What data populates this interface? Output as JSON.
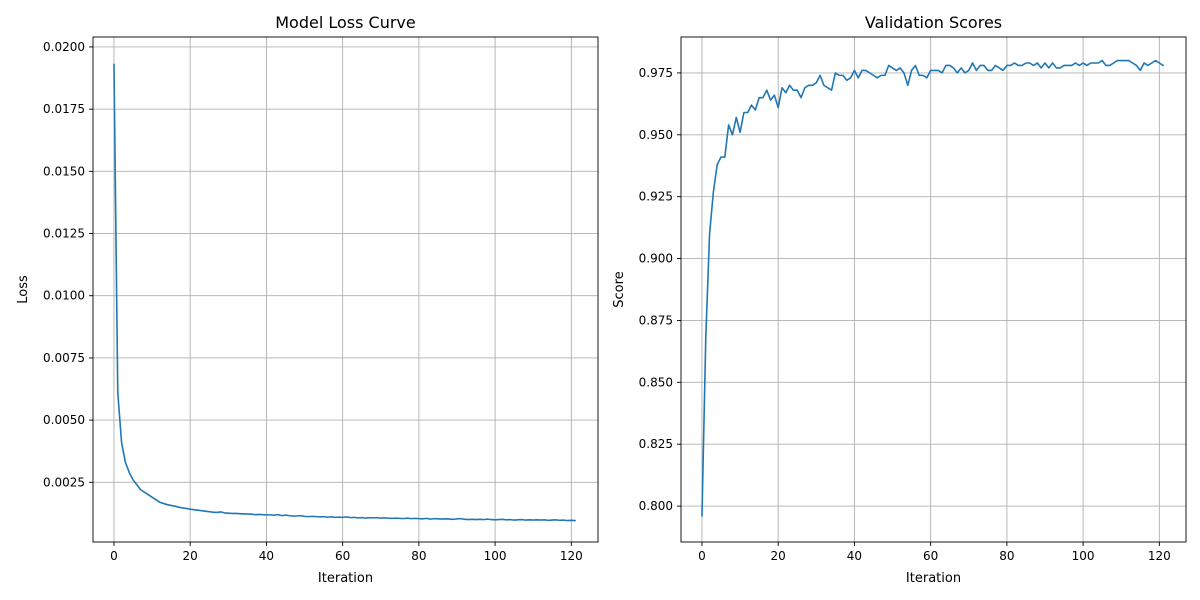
{
  "colors": {
    "series": "#1f77b4",
    "grid": "#b0b0b0"
  },
  "chart_data": [
    {
      "type": "line",
      "title": "Model Loss Curve",
      "xlabel": "Iteration",
      "ylabel": "Loss",
      "grid": true,
      "xlim": [
        -5.5,
        127
      ],
      "ylim": [
        0.0001,
        0.0204
      ],
      "xticks": [
        0,
        20,
        40,
        60,
        80,
        100,
        120
      ],
      "xtick_labels": [
        "0",
        "20",
        "40",
        "60",
        "80",
        "100",
        "120"
      ],
      "yticks": [
        0.0025,
        0.005,
        0.0075,
        0.01,
        0.0125,
        0.015,
        0.0175,
        0.02
      ],
      "ytick_labels": [
        "0.0025",
        "0.0050",
        "0.0075",
        "0.0100",
        "0.0125",
        "0.0150",
        "0.0175",
        "0.0200"
      ],
      "series": [
        {
          "x": [
            0,
            1,
            2,
            3,
            4,
            5,
            6,
            7,
            8,
            9,
            10,
            11,
            12,
            13,
            14,
            15,
            16,
            17,
            18,
            19,
            20,
            21,
            22,
            23,
            24,
            25,
            26,
            27,
            28,
            29,
            30,
            31,
            32,
            33,
            34,
            35,
            36,
            37,
            38,
            39,
            40,
            41,
            42,
            43,
            44,
            45,
            46,
            47,
            48,
            49,
            50,
            51,
            52,
            53,
            54,
            55,
            56,
            57,
            58,
            59,
            60,
            61,
            62,
            63,
            64,
            65,
            66,
            67,
            68,
            69,
            70,
            71,
            72,
            73,
            74,
            75,
            76,
            77,
            78,
            79,
            80,
            81,
            82,
            83,
            84,
            85,
            86,
            87,
            88,
            89,
            90,
            91,
            92,
            93,
            94,
            95,
            96,
            97,
            98,
            99,
            100,
            101,
            102,
            103,
            104,
            105,
            106,
            107,
            108,
            109,
            110,
            111,
            112,
            113,
            114,
            115,
            116,
            117,
            118,
            119,
            120,
            121
          ],
          "y": [
            0.0193,
            0.0061,
            0.0041,
            0.0033,
            0.0029,
            0.0026,
            0.0024,
            0.0022,
            0.0021,
            0.002,
            0.0019,
            0.0018,
            0.0017,
            0.00165,
            0.0016,
            0.00157,
            0.00154,
            0.0015,
            0.00147,
            0.00145,
            0.00142,
            0.0014,
            0.00138,
            0.00136,
            0.00134,
            0.00132,
            0.0013,
            0.00129,
            0.00131,
            0.00127,
            0.00126,
            0.00125,
            0.00125,
            0.00124,
            0.00123,
            0.00123,
            0.00122,
            0.0012,
            0.00121,
            0.0012,
            0.00119,
            0.00119,
            0.00118,
            0.0012,
            0.00116,
            0.00118,
            0.00116,
            0.00114,
            0.00115,
            0.00116,
            0.00113,
            0.00112,
            0.00113,
            0.00112,
            0.00111,
            0.00112,
            0.0011,
            0.00111,
            0.00109,
            0.0011,
            0.00109,
            0.00111,
            0.00108,
            0.00109,
            0.00107,
            0.00108,
            0.00106,
            0.00108,
            0.00107,
            0.00108,
            0.00106,
            0.00107,
            0.00106,
            0.00105,
            0.00106,
            0.00105,
            0.00104,
            0.00106,
            0.00104,
            0.00105,
            0.00104,
            0.00103,
            0.00105,
            0.00102,
            0.00104,
            0.00103,
            0.00102,
            0.00103,
            0.00102,
            0.00101,
            0.00103,
            0.00104,
            0.00101,
            0.001,
            0.00101,
            0.001,
            0.00101,
            0.001,
            0.00102,
            0.001,
            0.00099,
            0.001,
            0.00101,
            0.00099,
            0.001,
            0.00098,
            0.00099,
            0.001,
            0.00098,
            0.00099,
            0.00098,
            0.00099,
            0.00098,
            0.00099,
            0.00097,
            0.00098,
            0.00099,
            0.00097,
            0.00098,
            0.00096,
            0.00097,
            0.00096
          ]
        }
      ]
    },
    {
      "type": "line",
      "title": "Validation Scores",
      "xlabel": "Iteration",
      "ylabel": "Score",
      "grid": true,
      "xlim": [
        -5.5,
        127
      ],
      "ylim": [
        0.7855,
        0.9895
      ],
      "xticks": [
        0,
        20,
        40,
        60,
        80,
        100,
        120
      ],
      "xtick_labels": [
        "0",
        "20",
        "40",
        "60",
        "80",
        "100",
        "120"
      ],
      "yticks": [
        0.8,
        0.825,
        0.85,
        0.875,
        0.9,
        0.925,
        0.95,
        0.975
      ],
      "ytick_labels": [
        "0.800",
        "0.825",
        "0.850",
        "0.875",
        "0.900",
        "0.925",
        "0.950",
        "0.975"
      ],
      "series": [
        {
          "x": [
            0,
            1,
            2,
            3,
            4,
            5,
            6,
            7,
            8,
            9,
            10,
            11,
            12,
            13,
            14,
            15,
            16,
            17,
            18,
            19,
            20,
            21,
            22,
            23,
            24,
            25,
            26,
            27,
            28,
            29,
            30,
            31,
            32,
            33,
            34,
            35,
            36,
            37,
            38,
            39,
            40,
            41,
            42,
            43,
            44,
            45,
            46,
            47,
            48,
            49,
            50,
            51,
            52,
            53,
            54,
            55,
            56,
            57,
            58,
            59,
            60,
            61,
            62,
            63,
            64,
            65,
            66,
            67,
            68,
            69,
            70,
            71,
            72,
            73,
            74,
            75,
            76,
            77,
            78,
            79,
            80,
            81,
            82,
            83,
            84,
            85,
            86,
            87,
            88,
            89,
            90,
            91,
            92,
            93,
            94,
            95,
            96,
            97,
            98,
            99,
            100,
            101,
            102,
            103,
            104,
            105,
            106,
            107,
            108,
            109,
            110,
            111,
            112,
            113,
            114,
            115,
            116,
            117,
            118,
            119,
            120,
            121
          ],
          "y": [
            0.796,
            0.868,
            0.91,
            0.927,
            0.938,
            0.941,
            0.941,
            0.954,
            0.95,
            0.957,
            0.951,
            0.959,
            0.959,
            0.962,
            0.96,
            0.965,
            0.965,
            0.968,
            0.964,
            0.966,
            0.961,
            0.969,
            0.967,
            0.97,
            0.968,
            0.968,
            0.965,
            0.969,
            0.97,
            0.97,
            0.971,
            0.974,
            0.97,
            0.969,
            0.968,
            0.975,
            0.974,
            0.974,
            0.972,
            0.973,
            0.976,
            0.973,
            0.976,
            0.976,
            0.975,
            0.974,
            0.973,
            0.974,
            0.974,
            0.978,
            0.977,
            0.976,
            0.977,
            0.975,
            0.97,
            0.976,
            0.978,
            0.974,
            0.974,
            0.973,
            0.976,
            0.976,
            0.976,
            0.975,
            0.978,
            0.978,
            0.977,
            0.975,
            0.977,
            0.975,
            0.976,
            0.979,
            0.976,
            0.978,
            0.978,
            0.976,
            0.976,
            0.978,
            0.977,
            0.976,
            0.978,
            0.978,
            0.979,
            0.978,
            0.978,
            0.979,
            0.979,
            0.978,
            0.979,
            0.977,
            0.979,
            0.977,
            0.979,
            0.977,
            0.977,
            0.978,
            0.978,
            0.978,
            0.979,
            0.978,
            0.979,
            0.978,
            0.979,
            0.979,
            0.979,
            0.98,
            0.978,
            0.978,
            0.979,
            0.98,
            0.98,
            0.98,
            0.98,
            0.979,
            0.978,
            0.976,
            0.979,
            0.978,
            0.979,
            0.98,
            0.979,
            0.978
          ]
        }
      ]
    }
  ]
}
